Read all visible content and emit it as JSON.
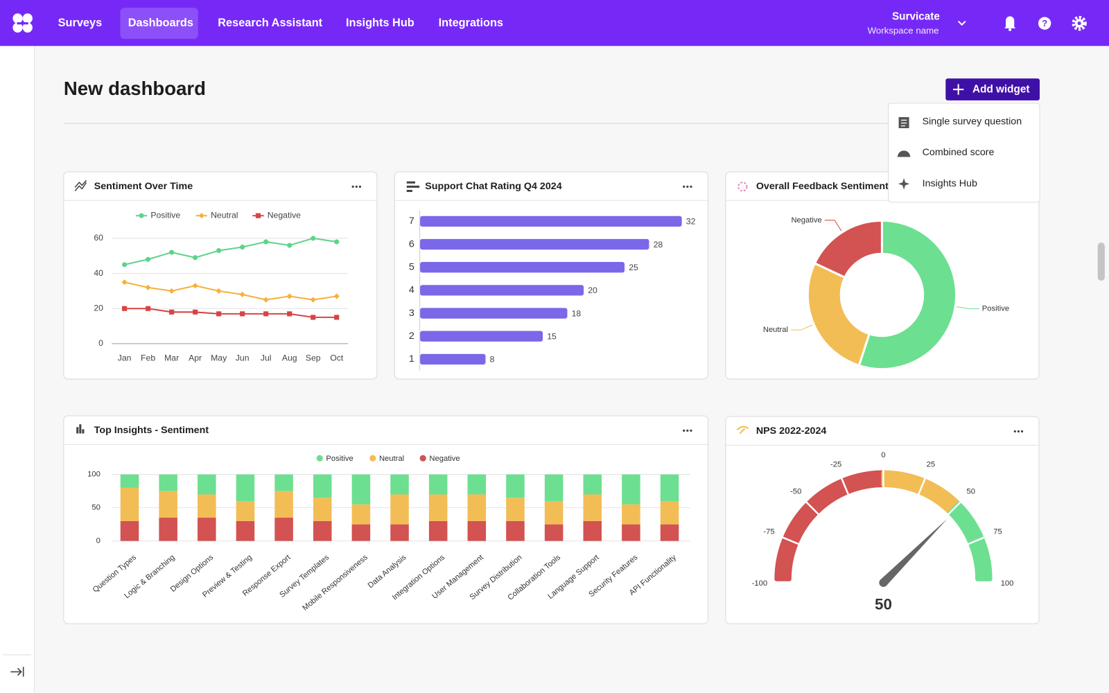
{
  "nav": {
    "items": [
      "Surveys",
      "Dashboards",
      "Research Assistant",
      "Insights Hub",
      "Integrations"
    ],
    "active_index": 1,
    "account": "Survicate",
    "workspace": "Workspace name"
  },
  "page_title": "New dashboard",
  "add_widget": "Add widget",
  "add_widget_menu": [
    "Single survey question",
    "Combined score",
    "Insights Hub"
  ],
  "chart_data": [
    {
      "type": "line",
      "title": "Sentiment Over Time",
      "categories": [
        "Jan",
        "Feb",
        "Mar",
        "Apr",
        "May",
        "Jun",
        "Jul",
        "Aug",
        "Sep",
        "Oct"
      ],
      "series": [
        {
          "name": "Positive",
          "color": "#5fd38a",
          "marker": "circle",
          "values": [
            45,
            48,
            52,
            49,
            53,
            55,
            58,
            56,
            60,
            58
          ]
        },
        {
          "name": "Neutral",
          "color": "#f5b13d",
          "marker": "diamond",
          "values": [
            35,
            32,
            30,
            33,
            30,
            28,
            25,
            27,
            25,
            27
          ]
        },
        {
          "name": "Negative",
          "color": "#d64545",
          "marker": "square",
          "values": [
            20,
            20,
            18,
            18,
            17,
            17,
            17,
            17,
            15,
            15
          ]
        }
      ],
      "ylim": [
        0,
        60
      ],
      "yticks": [
        0,
        20,
        40,
        60
      ],
      "grid": true
    },
    {
      "type": "hbar",
      "title": "Support Chat Rating Q4 2024",
      "categories": [
        "7",
        "6",
        "5",
        "4",
        "3",
        "2",
        "1"
      ],
      "values": [
        32,
        28,
        25,
        20,
        18,
        15,
        8
      ],
      "color": "#7a68e8"
    },
    {
      "type": "donut",
      "title": "Overall Feedback Sentiment",
      "categories": [
        "Positive",
        "Neutral",
        "Negative"
      ],
      "values": [
        55,
        27,
        18
      ],
      "colors": [
        "#6ddf91",
        "#f2bd55",
        "#d35252"
      ]
    },
    {
      "type": "stacked_bar",
      "title": "Top Insights - Sentiment",
      "categories": [
        "Question Types",
        "Logic & Branching",
        "Design Options",
        "Preview & Testing",
        "Response Export",
        "Survey Templates",
        "Mobile Responsiveness",
        "Data Analysis",
        "Integration Options",
        "User Management",
        "Survey Distribution",
        "Collaboration Tools",
        "Language Support",
        "Security Features",
        "API Functionality"
      ],
      "series": [
        {
          "name": "Negative",
          "color": "#d35252",
          "values": [
            30,
            35,
            35,
            30,
            35,
            30,
            25,
            25,
            30,
            30,
            30,
            25,
            30,
            25,
            25
          ]
        },
        {
          "name": "Neutral",
          "color": "#f2bd55",
          "values": [
            50,
            40,
            35,
            30,
            40,
            35,
            30,
            45,
            40,
            40,
            35,
            35,
            40,
            30,
            35
          ]
        },
        {
          "name": "Positive",
          "color": "#6ddf91",
          "values": [
            20,
            25,
            30,
            40,
            25,
            35,
            45,
            30,
            30,
            30,
            35,
            40,
            30,
            45,
            40
          ]
        }
      ],
      "legend_order": [
        2,
        1,
        0
      ],
      "ylim": [
        0,
        100
      ],
      "yticks": [
        0,
        50,
        100
      ],
      "grid": true
    },
    {
      "type": "gauge",
      "title": "NPS 2022-2024",
      "value": 50,
      "range": [
        -100,
        100
      ],
      "ticks": [
        -100,
        -75,
        -50,
        -25,
        0,
        25,
        50,
        75,
        100
      ],
      "bands": [
        {
          "from": -100,
          "to": 0,
          "color": "#d35252"
        },
        {
          "from": 0,
          "to": 50,
          "color": "#f2bd55"
        },
        {
          "from": 50,
          "to": 100,
          "color": "#6ddf91"
        }
      ]
    }
  ]
}
